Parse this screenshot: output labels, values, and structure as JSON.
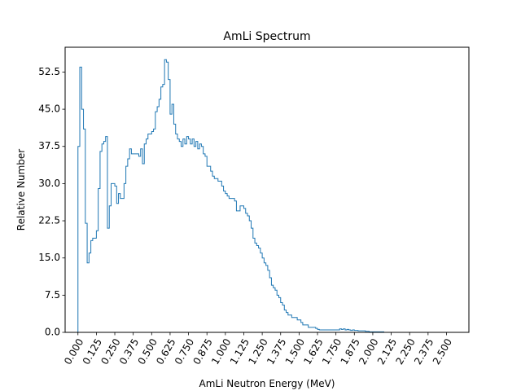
{
  "chart_data": {
    "type": "histogram-step",
    "title": "AmLi Spectrum",
    "xlabel": "AmLi Neutron Energy (MeV)",
    "ylabel": "Relative Number",
    "xlim": [
      -0.087,
      2.652
    ],
    "ylim": [
      0.0,
      57.5
    ],
    "xticks": [
      "0.000",
      "0.125",
      "0.250",
      "0.375",
      "0.500",
      "0.625",
      "0.750",
      "0.875",
      "1.000",
      "1.125",
      "1.250",
      "1.375",
      "1.500",
      "1.625",
      "1.750",
      "1.875",
      "2.000",
      "2.125",
      "2.250",
      "2.375",
      "2.500"
    ],
    "yticks": [
      "0.0",
      "7.5",
      "15.0",
      "22.5",
      "30.0",
      "37.5",
      "45.0",
      "52.5"
    ],
    "bin_width": 0.0125,
    "x_start": 0.0,
    "series": [
      {
        "name": "AmLi spectrum",
        "color": "#1f77b4",
        "values": [
          37.5,
          53.5,
          45.0,
          41.0,
          22.0,
          14.0,
          16.0,
          18.5,
          19.0,
          19.0,
          20.5,
          29.0,
          36.5,
          38.0,
          38.5,
          39.5,
          21.0,
          25.5,
          30.0,
          30.0,
          29.5,
          26.0,
          28.0,
          27.0,
          27.0,
          30.0,
          33.5,
          35.0,
          37.0,
          36.0,
          36.0,
          36.0,
          36.0,
          35.5,
          37.0,
          34.0,
          38.0,
          39.0,
          40.0,
          40.0,
          40.5,
          41.0,
          44.5,
          45.5,
          47.0,
          49.5,
          50.0,
          55.0,
          54.5,
          51.0,
          44.0,
          46.0,
          42.0,
          40.0,
          39.0,
          38.5,
          37.5,
          39.0,
          38.0,
          39.5,
          39.0,
          38.0,
          39.0,
          37.5,
          38.5,
          37.0,
          38.0,
          37.5,
          36.0,
          35.5,
          33.5,
          33.5,
          32.5,
          31.5,
          31.0,
          31.0,
          30.5,
          30.5,
          29.5,
          28.5,
          28.0,
          27.5,
          27.0,
          27.0,
          27.0,
          26.5,
          24.5,
          24.5,
          25.5,
          25.5,
          25.0,
          24.0,
          23.5,
          22.5,
          21.0,
          19.0,
          18.0,
          17.5,
          17.0,
          16.0,
          15.0,
          14.0,
          13.5,
          12.5,
          11.0,
          9.5,
          9.0,
          8.5,
          7.5,
          7.0,
          6.0,
          5.5,
          4.5,
          4.0,
          3.5,
          3.5,
          3.0,
          3.0,
          3.0,
          2.5,
          2.5,
          2.0,
          1.5,
          1.5,
          1.5,
          1.0,
          1.0,
          1.0,
          1.0,
          0.8,
          0.6,
          0.5,
          0.5,
          0.5,
          0.5,
          0.5,
          0.5,
          0.5,
          0.5,
          0.5,
          0.5,
          0.5,
          0.7,
          0.6,
          0.7,
          0.5,
          0.6,
          0.5,
          0.4,
          0.5,
          0.4,
          0.4,
          0.3,
          0.3,
          0.3,
          0.3,
          0.2,
          0.2,
          0.1,
          0.1,
          0.1,
          0.1,
          0.1,
          0.1,
          0.1,
          0.1,
          0.0,
          0.0,
          0.0,
          0.0,
          0.0,
          0.0,
          0.0,
          0.0,
          0.0,
          0.0,
          0.0,
          0.0,
          0.0,
          0.0,
          0.0,
          0.0,
          0.0,
          0.0,
          0.0,
          0.0,
          0.0,
          0.0,
          0.0,
          0.0,
          0.0,
          0.0,
          0.0,
          0.0,
          0.0,
          0.0,
          0.0,
          0.0
        ]
      }
    ]
  }
}
